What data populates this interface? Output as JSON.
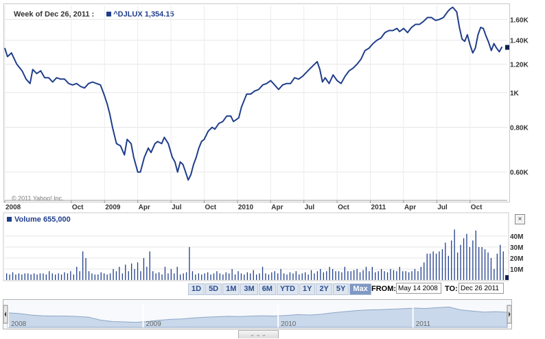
{
  "header": {
    "week_label": "Week of Dec 26, 2011 :",
    "symbol": "^DJLUX",
    "last_value": "1,354.15",
    "series_color": "#1f3d8a"
  },
  "copyright": "© 2011 Yahoo! Inc.",
  "volume": {
    "label": "Volume",
    "value": "655,000",
    "close_glyph": "×"
  },
  "range_buttons": [
    "1D",
    "5D",
    "1M",
    "3M",
    "6M",
    "YTD",
    "1Y",
    "2Y",
    "5Y",
    "Max"
  ],
  "active_range": "Max",
  "date_range": {
    "from_label": "FROM:",
    "from_value": "May 14 2008",
    "to_label": "TO:",
    "to_value": "Dec 26 2011"
  },
  "navigator": {
    "year_labels": [
      "2008",
      "2009",
      "2010",
      "2011"
    ],
    "grip": "⌄⌄⌄"
  },
  "chart_data": [
    {
      "type": "line",
      "scale": "log",
      "ylim": [
        0.5,
        1.75
      ],
      "yticks": [
        {
          "v": 0.6,
          "label": "0.60K"
        },
        {
          "v": 0.8,
          "label": "0.80K"
        },
        {
          "v": 1.0,
          "label": "1K"
        },
        {
          "v": 1.2,
          "label": "1.20K"
        },
        {
          "v": 1.4,
          "label": "1.40K"
        },
        {
          "v": 1.6,
          "label": "1.60K"
        }
      ],
      "xticks": [
        {
          "t": 0.0,
          "label": "2008"
        },
        {
          "t": 0.5,
          "label": "Oct"
        },
        {
          "t": 0.75,
          "label": "2009"
        },
        {
          "t": 1.0,
          "label": "Apr"
        },
        {
          "t": 1.25,
          "label": "Jul"
        },
        {
          "t": 1.5,
          "label": "Oct"
        },
        {
          "t": 1.75,
          "label": "2010"
        },
        {
          "t": 2.0,
          "label": "Apr"
        },
        {
          "t": 2.25,
          "label": "Jul"
        },
        {
          "t": 2.5,
          "label": "Oct"
        },
        {
          "t": 2.75,
          "label": "2011"
        },
        {
          "t": 3.0,
          "label": "Apr"
        },
        {
          "t": 3.25,
          "label": "Jul"
        },
        {
          "t": 3.5,
          "label": "Oct"
        }
      ],
      "series": [
        {
          "name": "^DJLUX",
          "color": "#1f3d8a",
          "points": [
            [
              0.0,
              1.33
            ],
            [
              0.02,
              1.26
            ],
            [
              0.05,
              1.29
            ],
            [
              0.09,
              1.2
            ],
            [
              0.13,
              1.15
            ],
            [
              0.16,
              1.09
            ],
            [
              0.19,
              1.06
            ],
            [
              0.21,
              1.16
            ],
            [
              0.24,
              1.13
            ],
            [
              0.27,
              1.15
            ],
            [
              0.3,
              1.1
            ],
            [
              0.33,
              1.1
            ],
            [
              0.36,
              1.07
            ],
            [
              0.39,
              1.1
            ],
            [
              0.42,
              1.09
            ],
            [
              0.45,
              1.09
            ],
            [
              0.48,
              1.06
            ],
            [
              0.51,
              1.05
            ],
            [
              0.54,
              1.06
            ],
            [
              0.57,
              1.04
            ],
            [
              0.6,
              1.03
            ],
            [
              0.63,
              1.06
            ],
            [
              0.66,
              1.07
            ],
            [
              0.69,
              1.06
            ],
            [
              0.72,
              1.05
            ],
            [
              0.75,
              0.98
            ],
            [
              0.77,
              0.93
            ],
            [
              0.79,
              0.87
            ],
            [
              0.81,
              0.8
            ],
            [
              0.84,
              0.72
            ],
            [
              0.87,
              0.71
            ],
            [
              0.9,
              0.67
            ],
            [
              0.92,
              0.74
            ],
            [
              0.95,
              0.72
            ],
            [
              0.97,
              0.66
            ],
            [
              1.0,
              0.6
            ],
            [
              1.02,
              0.6
            ],
            [
              1.05,
              0.66
            ],
            [
              1.08,
              0.7
            ],
            [
              1.1,
              0.68
            ],
            [
              1.13,
              0.72
            ],
            [
              1.15,
              0.73
            ],
            [
              1.18,
              0.72
            ],
            [
              1.2,
              0.75
            ],
            [
              1.23,
              0.72
            ],
            [
              1.26,
              0.66
            ],
            [
              1.28,
              0.64
            ],
            [
              1.3,
              0.6
            ],
            [
              1.32,
              0.64
            ],
            [
              1.34,
              0.63
            ],
            [
              1.36,
              0.6
            ],
            [
              1.38,
              0.57
            ],
            [
              1.4,
              0.59
            ],
            [
              1.42,
              0.63
            ],
            [
              1.44,
              0.66
            ],
            [
              1.46,
              0.7
            ],
            [
              1.48,
              0.73
            ],
            [
              1.5,
              0.74
            ],
            [
              1.53,
              0.78
            ],
            [
              1.56,
              0.8
            ],
            [
              1.58,
              0.79
            ],
            [
              1.61,
              0.82
            ],
            [
              1.64,
              0.83
            ],
            [
              1.67,
              0.86
            ],
            [
              1.7,
              0.86
            ],
            [
              1.72,
              0.83
            ],
            [
              1.74,
              0.84
            ],
            [
              1.76,
              0.85
            ],
            [
              1.78,
              0.91
            ],
            [
              1.8,
              0.95
            ],
            [
              1.82,
              0.99
            ],
            [
              1.85,
              0.99
            ],
            [
              1.88,
              1.01
            ],
            [
              1.91,
              1.02
            ],
            [
              1.94,
              1.05
            ],
            [
              1.97,
              1.06
            ],
            [
              2.0,
              1.08
            ],
            [
              2.03,
              1.05
            ],
            [
              2.06,
              1.02
            ],
            [
              2.09,
              1.05
            ],
            [
              2.12,
              1.06
            ],
            [
              2.15,
              1.06
            ],
            [
              2.18,
              1.1
            ],
            [
              2.21,
              1.09
            ],
            [
              2.24,
              1.11
            ],
            [
              2.27,
              1.14
            ],
            [
              2.3,
              1.17
            ],
            [
              2.32,
              1.19
            ],
            [
              2.35,
              1.22
            ],
            [
              2.37,
              1.16
            ],
            [
              2.39,
              1.07
            ],
            [
              2.41,
              1.1
            ],
            [
              2.44,
              1.06
            ],
            [
              2.47,
              1.12
            ],
            [
              2.5,
              1.08
            ],
            [
              2.53,
              1.06
            ],
            [
              2.56,
              1.11
            ],
            [
              2.59,
              1.15
            ],
            [
              2.62,
              1.17
            ],
            [
              2.65,
              1.2
            ],
            [
              2.68,
              1.24
            ],
            [
              2.71,
              1.31
            ],
            [
              2.74,
              1.33
            ],
            [
              2.77,
              1.37
            ],
            [
              2.8,
              1.4
            ],
            [
              2.83,
              1.42
            ],
            [
              2.86,
              1.47
            ],
            [
              2.89,
              1.49
            ],
            [
              2.92,
              1.49
            ],
            [
              2.95,
              1.51
            ],
            [
              2.97,
              1.48
            ],
            [
              3.0,
              1.51
            ],
            [
              3.03,
              1.47
            ],
            [
              3.06,
              1.52
            ],
            [
              3.09,
              1.55
            ],
            [
              3.12,
              1.55
            ],
            [
              3.15,
              1.58
            ],
            [
              3.18,
              1.62
            ],
            [
              3.21,
              1.62
            ],
            [
              3.24,
              1.59
            ],
            [
              3.27,
              1.6
            ],
            [
              3.3,
              1.62
            ],
            [
              3.33,
              1.68
            ],
            [
              3.35,
              1.71
            ],
            [
              3.37,
              1.73
            ],
            [
              3.4,
              1.68
            ],
            [
              3.42,
              1.52
            ],
            [
              3.44,
              1.41
            ],
            [
              3.46,
              1.39
            ],
            [
              3.48,
              1.45
            ],
            [
              3.5,
              1.36
            ],
            [
              3.52,
              1.29
            ],
            [
              3.54,
              1.33
            ],
            [
              3.56,
              1.45
            ],
            [
              3.58,
              1.52
            ],
            [
              3.6,
              1.51
            ],
            [
              3.62,
              1.44
            ],
            [
              3.64,
              1.38
            ],
            [
              3.66,
              1.31
            ],
            [
              3.68,
              1.37
            ],
            [
              3.7,
              1.33
            ],
            [
              3.72,
              1.3
            ],
            [
              3.74,
              1.34
            ]
          ]
        }
      ]
    },
    {
      "type": "bar",
      "ylim": [
        0,
        50
      ],
      "yticks": [
        {
          "v": 10,
          "label": "10M"
        },
        {
          "v": 20,
          "label": "20M"
        },
        {
          "v": 30,
          "label": "30M"
        },
        {
          "v": 40,
          "label": "40M"
        }
      ],
      "values": [
        6,
        5,
        7,
        5,
        6,
        5,
        6,
        6,
        5,
        6,
        5,
        6,
        6,
        5,
        8,
        6,
        5,
        6,
        5,
        7,
        6,
        8,
        5,
        12,
        8,
        26,
        20,
        8,
        6,
        5,
        5,
        7,
        6,
        5,
        6,
        10,
        8,
        12,
        6,
        14,
        8,
        15,
        10,
        16,
        8,
        20,
        12,
        26,
        8,
        6,
        7,
        5,
        12,
        6,
        10,
        6,
        12,
        5,
        6,
        7,
        30,
        8,
        5,
        6,
        5,
        6,
        7,
        5,
        6,
        8,
        6,
        5,
        7,
        6,
        10,
        5,
        8,
        6,
        5,
        7,
        6,
        9,
        5,
        6,
        12,
        6,
        5,
        7,
        8,
        6,
        10,
        6,
        5,
        7,
        6,
        8,
        5,
        6,
        7,
        5,
        9,
        6,
        8,
        10,
        7,
        8,
        12,
        10,
        8,
        8,
        7,
        12,
        8,
        8,
        9,
        10,
        7,
        9,
        12,
        8,
        12,
        7,
        8,
        10,
        8,
        7,
        10,
        9,
        8,
        12,
        8,
        8,
        7,
        8,
        10,
        8,
        12,
        16,
        24,
        24,
        26,
        24,
        26,
        28,
        34,
        22,
        36,
        46,
        25,
        32,
        38,
        42,
        30,
        36,
        45,
        30,
        30,
        28,
        25,
        20,
        10,
        24,
        32,
        26
      ]
    }
  ],
  "navigator_series": [
    1.3,
    1.25,
    1.15,
    1.1,
    1.08,
    1.08,
    1.05,
    1.0,
    0.8,
    0.7,
    0.68,
    0.65,
    0.7,
    0.78,
    0.85,
    0.88,
    0.95,
    1.0,
    1.03,
    1.06,
    1.04,
    1.08,
    1.1,
    1.08,
    1.12,
    1.18,
    1.15,
    1.2,
    1.3,
    1.38,
    1.45,
    1.5,
    1.52,
    1.55,
    1.58,
    1.62,
    1.6,
    1.66,
    1.7,
    1.5,
    1.42,
    1.35,
    1.38,
    1.34
  ]
}
